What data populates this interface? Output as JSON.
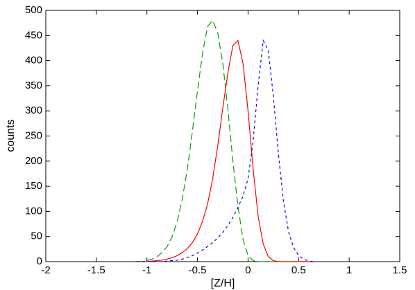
{
  "chart_data": {
    "type": "line",
    "xlabel": "[Z/H]",
    "ylabel": "counts",
    "x": [
      -1.1,
      -1.05,
      -1.0,
      -0.95,
      -0.9,
      -0.85,
      -0.8,
      -0.75,
      -0.7,
      -0.65,
      -0.6,
      -0.55,
      -0.5,
      -0.45,
      -0.4,
      -0.35,
      -0.3,
      -0.25,
      -0.2,
      -0.15,
      -0.1,
      -0.05,
      0,
      0.05,
      0.1,
      0.15,
      0.2,
      0.25,
      0.3,
      0.35,
      0.4,
      0.45,
      0.5,
      0.55,
      0.6,
      0.65
    ],
    "series": [
      {
        "color": "#00a000",
        "dash": "long",
        "values": [
          0,
          0,
          2,
          5,
          10,
          18,
          30,
          50,
          80,
          125,
          185,
          260,
          340,
          415,
          468,
          480,
          455,
          395,
          305,
          200,
          110,
          45,
          12,
          2,
          0,
          0,
          0,
          0,
          0,
          0,
          0,
          0,
          0,
          0,
          0,
          0
        ]
      },
      {
        "color": "#ff0000",
        "dash": "solid",
        "values": [
          0,
          0,
          0,
          1,
          2,
          3,
          5,
          8,
          12,
          18,
          26,
          38,
          55,
          80,
          115,
          165,
          230,
          305,
          375,
          430,
          440,
          395,
          300,
          185,
          90,
          35,
          10,
          2,
          0,
          0,
          0,
          0,
          0,
          0,
          0,
          0
        ]
      },
      {
        "color": "#0000ff",
        "dash": "short",
        "values": [
          0,
          0,
          0,
          0,
          0,
          0,
          1,
          2,
          3,
          5,
          8,
          12,
          17,
          23,
          30,
          38,
          47,
          58,
          72,
          88,
          108,
          130,
          165,
          240,
          350,
          440,
          420,
          330,
          215,
          120,
          60,
          28,
          12,
          5,
          1,
          0
        ]
      }
    ],
    "xlim": [
      -2,
      1.5
    ],
    "xticks": [
      -2,
      -1.5,
      -1,
      -0.5,
      0,
      0.5,
      1,
      1.5
    ],
    "ylim": [
      0,
      500
    ],
    "yticks": [
      0,
      50,
      100,
      150,
      200,
      250,
      300,
      350,
      400,
      450,
      500
    ],
    "grid": false
  }
}
